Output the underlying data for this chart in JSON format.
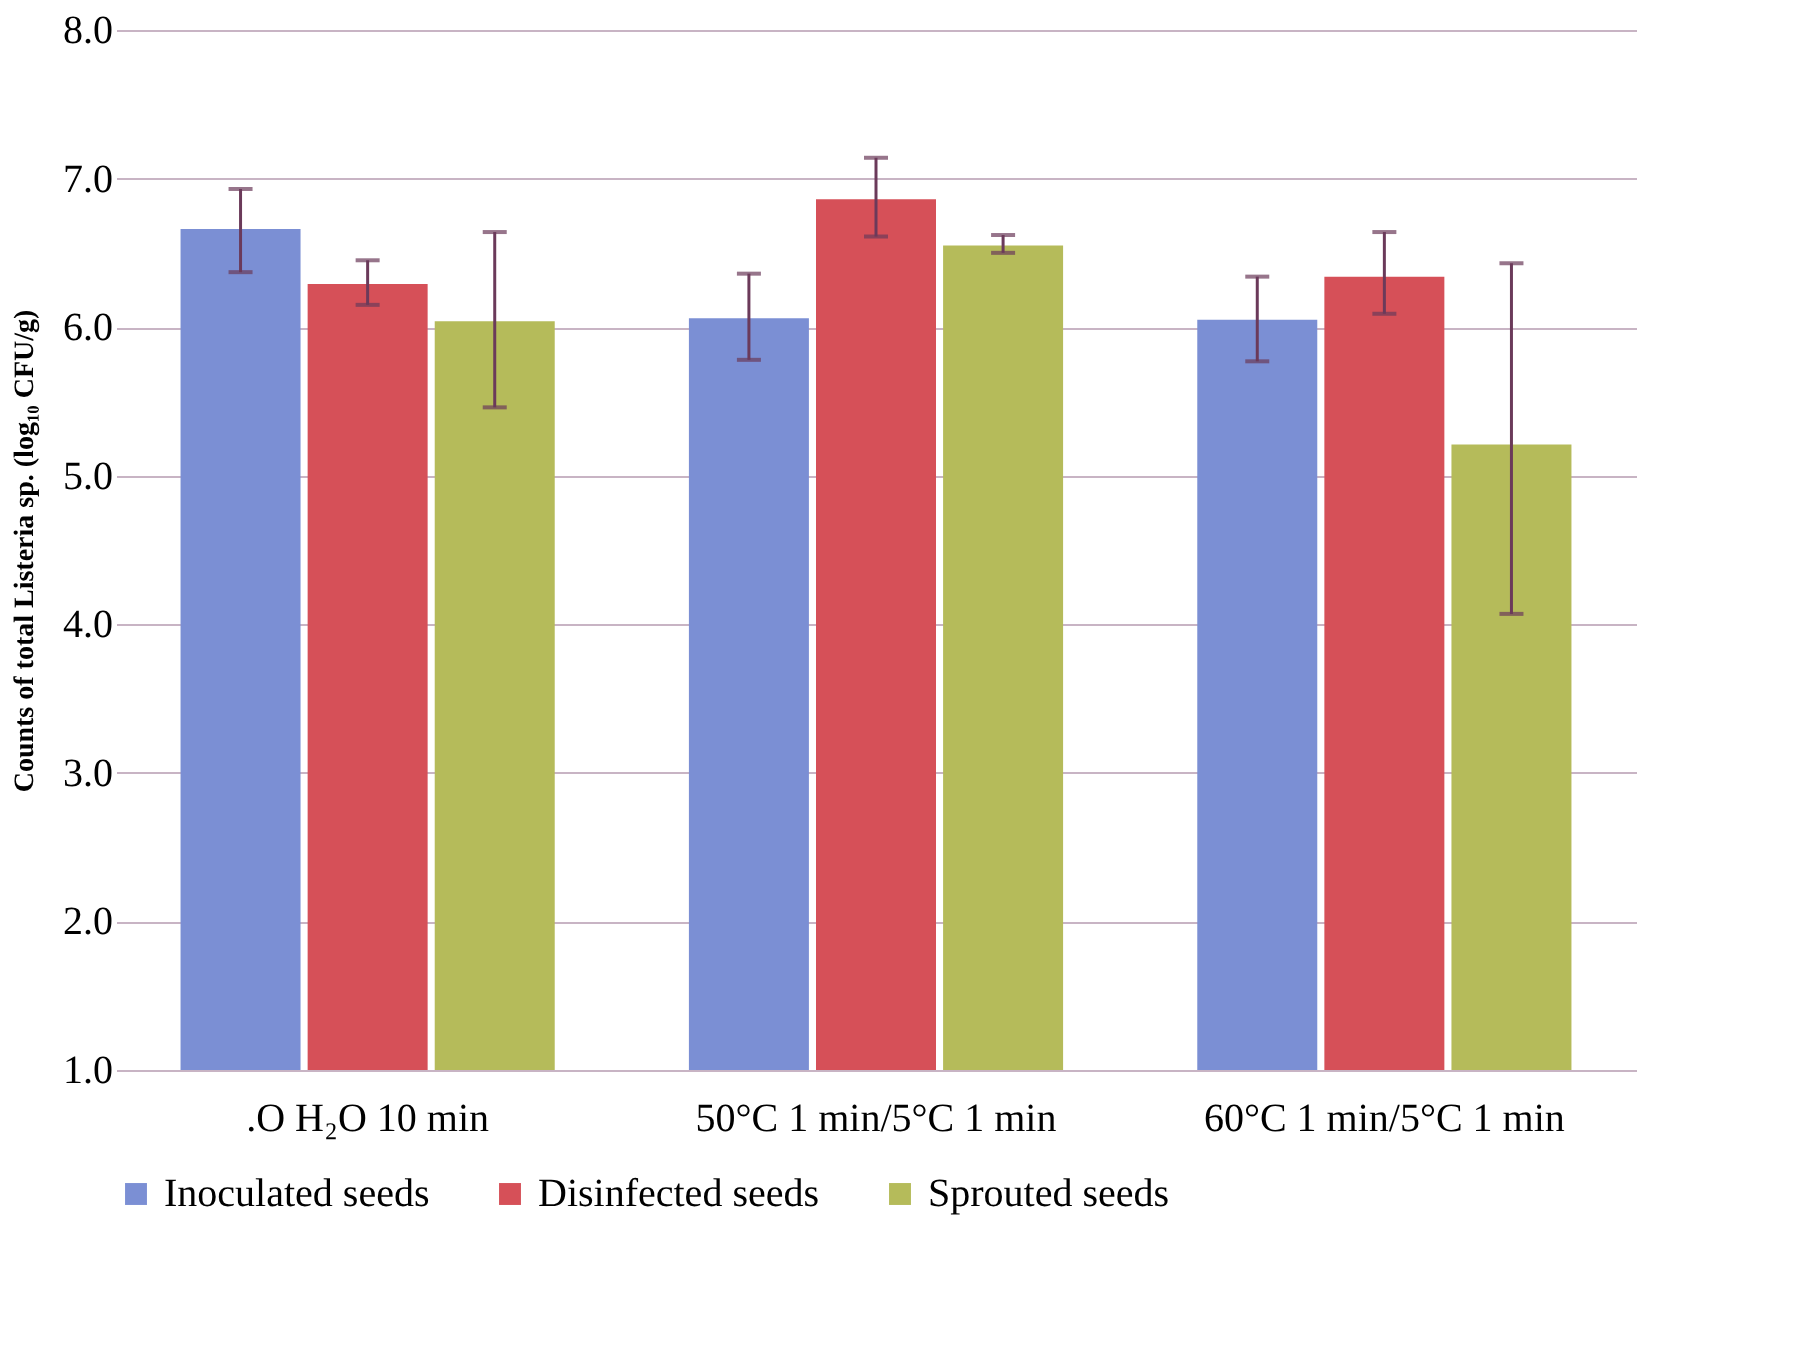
{
  "chart_data": {
    "type": "bar",
    "ylabel": "Counts of total Listeria sp. (log₁₀ CFU/g)",
    "categories": [
      ".O H₂O 10 min",
      "50°C 1 min/5°C 1 min",
      "60°C 1 min/5°C 1 min"
    ],
    "series": [
      {
        "name": "Inoculated seeds",
        "color": "#7b8fd4",
        "values": [
          6.66,
          6.06,
          6.05
        ],
        "errors": [
          [
            6.37,
            6.93
          ],
          [
            5.78,
            6.36
          ],
          [
            5.77,
            6.34
          ]
        ]
      },
      {
        "name": "Disinfected seeds",
        "color": "#d65058",
        "values": [
          6.29,
          6.86,
          6.34
        ],
        "errors": [
          [
            6.15,
            6.45
          ],
          [
            6.61,
            7.14
          ],
          [
            6.09,
            6.64
          ]
        ]
      },
      {
        "name": "Sprouted seeds",
        "color": "#b5bb5a",
        "values": [
          6.04,
          6.55,
          5.21
        ],
        "errors": [
          [
            5.46,
            6.64
          ],
          [
            6.5,
            6.62
          ],
          [
            4.07,
            6.43
          ]
        ]
      }
    ],
    "ylim": [
      1,
      8
    ],
    "yticks": [
      {
        "value": 1,
        "label": "1.0"
      },
      {
        "value": 2,
        "label": "2.0"
      },
      {
        "value": 3,
        "label": "3.0"
      },
      {
        "value": 4,
        "label": "4.0"
      },
      {
        "value": 5,
        "label": "5.0"
      },
      {
        "value": 6,
        "label": "6.0"
      },
      {
        "value": 7,
        "label": "7.0"
      },
      {
        "value": 8,
        "label": "8.0"
      }
    ],
    "grid": "y",
    "legend": "bottom"
  }
}
